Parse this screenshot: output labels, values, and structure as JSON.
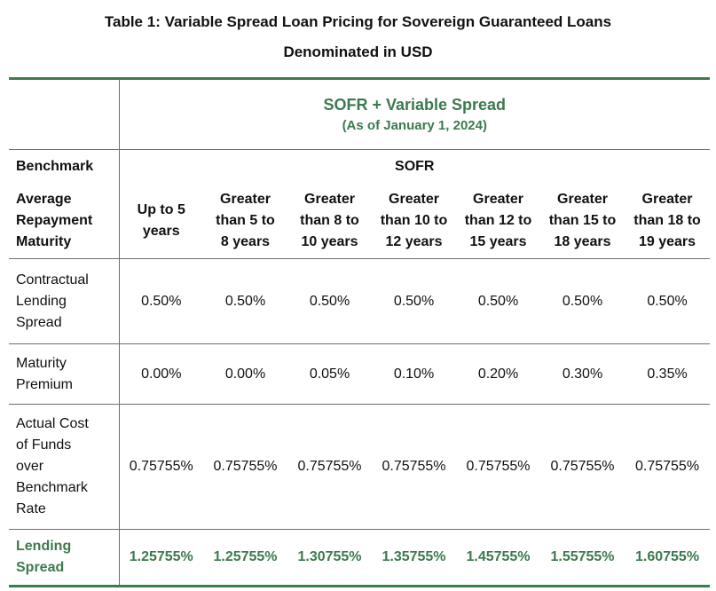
{
  "title": {
    "line1": "Table 1: Variable Spread Loan Pricing for Sovereign Guaranteed Loans",
    "line2": "Denominated in USD"
  },
  "header": {
    "sofr_title": "SOFR + Variable Spread",
    "sofr_subtitle": "(As of January 1, 2024)"
  },
  "benchmark": {
    "label": "Benchmark",
    "value": "SOFR"
  },
  "maturity": {
    "label_lines": [
      "Average",
      "Repayment",
      "Maturity"
    ],
    "columns": [
      [
        "Up to 5",
        "years"
      ],
      [
        "Greater",
        "than 5 to",
        "8 years"
      ],
      [
        "Greater",
        "than 8 to",
        "10 years"
      ],
      [
        "Greater",
        "than 10 to",
        "12 years"
      ],
      [
        "Greater",
        "than 12 to",
        "15 years"
      ],
      [
        "Greater",
        "than 15 to",
        "18 years"
      ],
      [
        "Greater",
        "than 18 to",
        "19 years"
      ]
    ]
  },
  "rows": [
    {
      "label_lines": [
        "Contractual",
        "Lending",
        "Spread"
      ],
      "values": [
        "0.50%",
        "0.50%",
        "0.50%",
        "0.50%",
        "0.50%",
        "0.50%",
        "0.50%"
      ]
    },
    {
      "label_lines": [
        "Maturity",
        "Premium"
      ],
      "values": [
        "0.00%",
        "0.00%",
        "0.05%",
        "0.10%",
        "0.20%",
        "0.30%",
        "0.35%"
      ]
    },
    {
      "label_lines": [
        "Actual Cost",
        "of Funds",
        "over",
        "Benchmark",
        "Rate"
      ],
      "values": [
        "0.75755%",
        "0.75755%",
        "0.75755%",
        "0.75755%",
        "0.75755%",
        "0.75755%",
        "0.75755%"
      ]
    }
  ],
  "lending_spread": {
    "label_lines": [
      "Lending",
      "Spread"
    ],
    "values": [
      "1.25755%",
      "1.25755%",
      "1.30755%",
      "1.35755%",
      "1.45755%",
      "1.55755%",
      "1.60755%"
    ]
  },
  "colors": {
    "accent_green": "#3c7a4f",
    "rule_gray": "#6f6f6f"
  }
}
